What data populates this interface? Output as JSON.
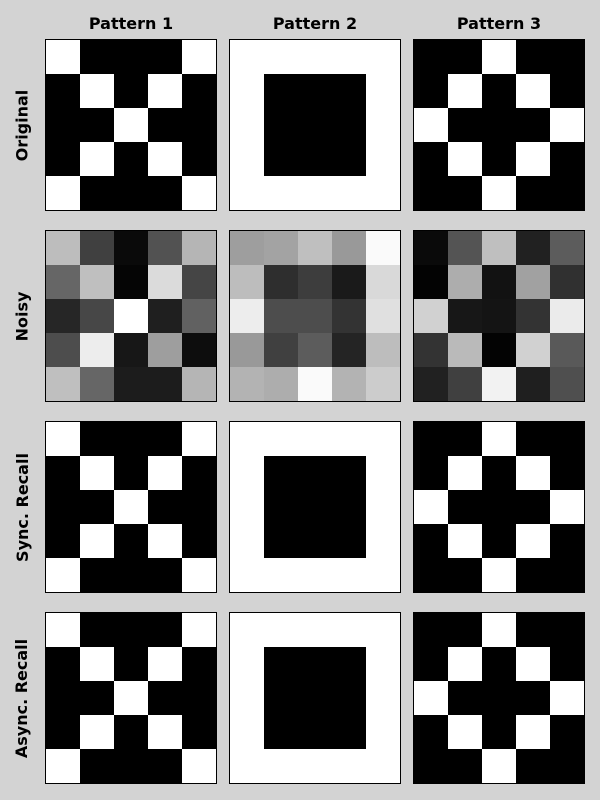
{
  "chart_data": {
    "type": "heatmap",
    "column_titles": [
      "Pattern 1",
      "Pattern 2",
      "Pattern 3"
    ],
    "row_titles": [
      "Original",
      "Noisy",
      "Sync. Recall",
      "Async. Recall"
    ],
    "grid_size": 5,
    "value_range": [
      0,
      1
    ],
    "colormap": "gray (0 = black, 1 = white)",
    "grids": [
      [
        [
          [
            1,
            0,
            0,
            0,
            1
          ],
          [
            0,
            1,
            0,
            1,
            0
          ],
          [
            0,
            0,
            1,
            0,
            0
          ],
          [
            0,
            1,
            0,
            1,
            0
          ],
          [
            1,
            0,
            0,
            0,
            1
          ]
        ],
        [
          [
            1,
            1,
            1,
            1,
            1
          ],
          [
            1,
            0,
            0,
            0,
            1
          ],
          [
            1,
            0,
            0,
            0,
            1
          ],
          [
            1,
            0,
            0,
            0,
            1
          ],
          [
            1,
            1,
            1,
            1,
            1
          ]
        ],
        [
          [
            0,
            0,
            1,
            0,
            0
          ],
          [
            0,
            1,
            0,
            1,
            0
          ],
          [
            1,
            0,
            0,
            0,
            1
          ],
          [
            0,
            1,
            0,
            1,
            0
          ],
          [
            0,
            0,
            1,
            0,
            0
          ]
        ]
      ],
      [
        [
          [
            0.74,
            0.25,
            0.04,
            0.32,
            0.71
          ],
          [
            0.4,
            0.75,
            0.02,
            0.86,
            0.27
          ],
          [
            0.15,
            0.28,
            1.0,
            0.12,
            0.38
          ],
          [
            0.3,
            0.93,
            0.09,
            0.62,
            0.05
          ],
          [
            0.75,
            0.4,
            0.11,
            0.11,
            0.71
          ]
        ],
        [
          [
            0.62,
            0.64,
            0.75,
            0.6,
            0.98
          ],
          [
            0.74,
            0.18,
            0.24,
            0.1,
            0.85
          ],
          [
            0.93,
            0.3,
            0.3,
            0.2,
            0.88
          ],
          [
            0.6,
            0.25,
            0.36,
            0.14,
            0.74
          ],
          [
            0.7,
            0.68,
            0.98,
            0.7,
            0.8
          ]
        ],
        [
          [
            0.04,
            0.33,
            0.75,
            0.13,
            0.36
          ],
          [
            0.01,
            0.68,
            0.07,
            0.63,
            0.19
          ],
          [
            0.82,
            0.09,
            0.08,
            0.2,
            0.92
          ],
          [
            0.2,
            0.73,
            0.01,
            0.82,
            0.35
          ],
          [
            0.13,
            0.25,
            0.95,
            0.12,
            0.31
          ]
        ]
      ],
      [
        [
          [
            1,
            0,
            0,
            0,
            1
          ],
          [
            0,
            1,
            0,
            1,
            0
          ],
          [
            0,
            0,
            1,
            0,
            0
          ],
          [
            0,
            1,
            0,
            1,
            0
          ],
          [
            1,
            0,
            0,
            0,
            1
          ]
        ],
        [
          [
            1,
            1,
            1,
            1,
            1
          ],
          [
            1,
            0,
            0,
            0,
            1
          ],
          [
            1,
            0,
            0,
            0,
            1
          ],
          [
            1,
            0,
            0,
            0,
            1
          ],
          [
            1,
            1,
            1,
            1,
            1
          ]
        ],
        [
          [
            0,
            0,
            1,
            0,
            0
          ],
          [
            0,
            1,
            0,
            1,
            0
          ],
          [
            1,
            0,
            0,
            0,
            1
          ],
          [
            0,
            1,
            0,
            1,
            0
          ],
          [
            0,
            0,
            1,
            0,
            0
          ]
        ]
      ],
      [
        [
          [
            1,
            0,
            0,
            0,
            1
          ],
          [
            0,
            1,
            0,
            1,
            0
          ],
          [
            0,
            0,
            1,
            0,
            0
          ],
          [
            0,
            1,
            0,
            1,
            0
          ],
          [
            1,
            0,
            0,
            0,
            1
          ]
        ],
        [
          [
            1,
            1,
            1,
            1,
            1
          ],
          [
            1,
            0,
            0,
            0,
            1
          ],
          [
            1,
            0,
            0,
            0,
            1
          ],
          [
            1,
            0,
            0,
            0,
            1
          ],
          [
            1,
            1,
            1,
            1,
            1
          ]
        ],
        [
          [
            0,
            0,
            1,
            0,
            0
          ],
          [
            0,
            1,
            0,
            1,
            0
          ],
          [
            1,
            0,
            0,
            0,
            1
          ],
          [
            0,
            1,
            0,
            1,
            0
          ],
          [
            0,
            0,
            1,
            0,
            0
          ]
        ]
      ]
    ],
    "colors": {
      "figure_background": "#d3d3d3",
      "panel_border": "#000000"
    }
  }
}
